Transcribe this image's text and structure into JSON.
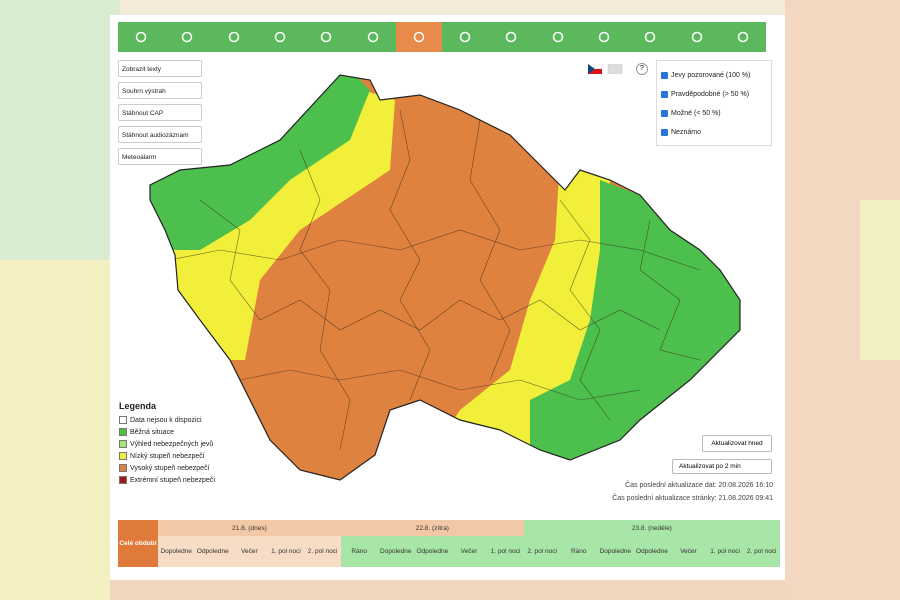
{
  "toolbar": {
    "buttons": [
      "Zobrazit texty",
      "Souhrn výstrah",
      "Stáhnout CAP",
      "Stáhnout audiozáznam",
      "Meteoalarm"
    ]
  },
  "help": "?",
  "filters": [
    "Jevy pozorované (100 %)",
    "Pravděpodobné (> 50 %)",
    "Možné (< 50 %)",
    "Neznámo"
  ],
  "legend": {
    "title": "Legenda",
    "items": [
      "Data nejsou k dispozici",
      "Běžná situace",
      "Výhled nebezpečných jevů",
      "Nízký stupeň nebezpečí",
      "Vysoký stupeň nebezpečí",
      "Extrémní stupeň nebezpečí"
    ]
  },
  "refresh": {
    "button": "Aktualizovat hned",
    "interval": "Aktualizovat po 2 min"
  },
  "updates": [
    "Čas poslední aktualizace dat: 20.08.2026 16:10",
    "Čas poslední aktualizace stránky: 21.08.2026 09:41"
  ],
  "timeline": {
    "whole_period": "Celé období",
    "days": [
      {
        "label": "21.8. (dnes)",
        "slots": [
          "Dopoledne",
          "Odpoledne",
          "Večer",
          "1. pol noci",
          "2. pol noci"
        ]
      },
      {
        "label": "22.8. (zítra)",
        "slots": [
          "Ráno",
          "Dopoledne",
          "Odpoledne",
          "Večer",
          "1. pol noci"
        ]
      },
      {
        "label": "23.8. (neděle)",
        "slots": [
          "2. pol noci",
          "Ráno",
          "Dopoledne",
          "Odpoledne",
          "Večer",
          "1. pol noci",
          "2. pol noci"
        ]
      }
    ]
  }
}
